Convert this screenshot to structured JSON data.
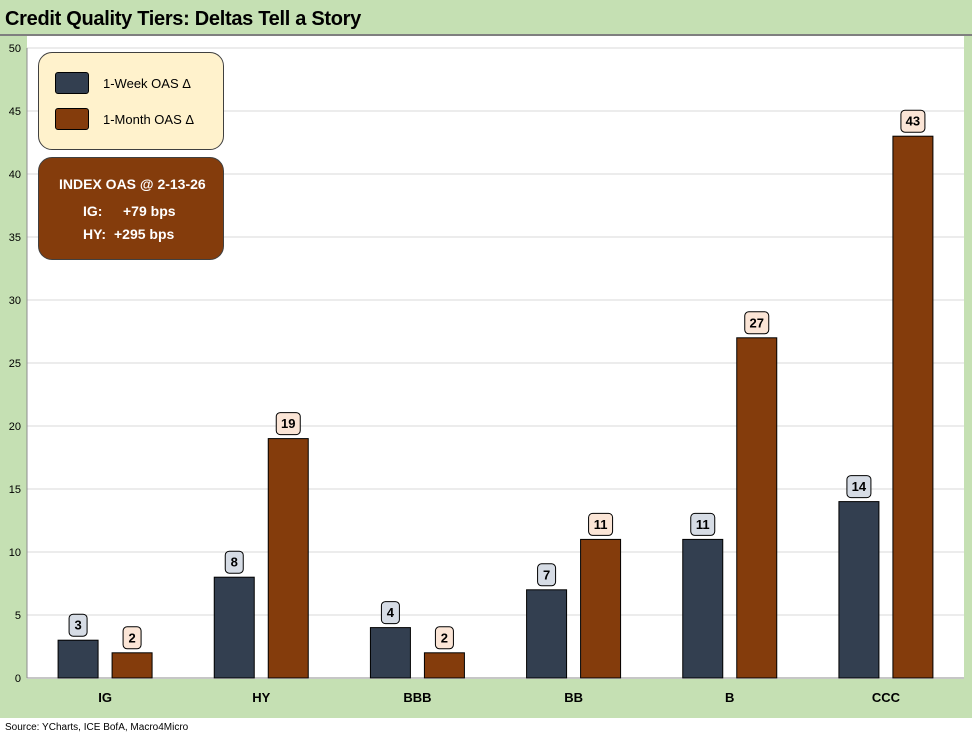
{
  "title": "Credit Quality Tiers: Deltas Tell a Story",
  "source": "Source: YCharts, ICE BofA, Macro4Micro",
  "legend": {
    "week_label": "1-Week OAS Δ",
    "month_label": "1-Month OAS Δ"
  },
  "index_box": {
    "heading": "INDEX OAS @ 2-13-26",
    "ig_label": "IG:",
    "ig_value": "+79 bps",
    "hy_label": "HY:",
    "hy_value": "+295 bps"
  },
  "colors": {
    "week": "#333f50",
    "month": "#843c0c",
    "week_label_bg": "#d6dce5",
    "month_label_bg": "#fbe5d6",
    "frame": "#c5e0b3"
  },
  "chart_data": {
    "type": "bar",
    "title": "Credit Quality Tiers: Deltas Tell a Story",
    "categories": [
      "IG",
      "HY",
      "BBB",
      "BB",
      "B",
      "CCC"
    ],
    "series": [
      {
        "name": "1-Week OAS Δ",
        "values": [
          3,
          8,
          4,
          7,
          11,
          14
        ]
      },
      {
        "name": "1-Month OAS Δ",
        "values": [
          2,
          19,
          2,
          11,
          27,
          43
        ]
      }
    ],
    "ylim": [
      0,
      50
    ],
    "yticks": [
      0,
      5,
      10,
      15,
      20,
      25,
      30,
      35,
      40,
      45,
      50
    ],
    "xlabel": "",
    "ylabel": "",
    "grid": true,
    "legend_position": "top-left"
  }
}
